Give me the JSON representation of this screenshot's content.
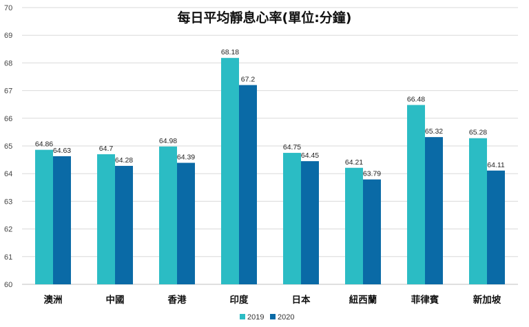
{
  "chart_data": {
    "type": "bar",
    "title": "每日平均靜息心率(單位:分鐘)",
    "xlabel": "",
    "ylabel": "",
    "ylim": [
      60,
      70
    ],
    "yticks": [
      60,
      61,
      62,
      63,
      64,
      65,
      66,
      67,
      68,
      69,
      70
    ],
    "categories": [
      "澳洲",
      "中國",
      "香港",
      "印度",
      "日本",
      "紐西蘭",
      "菲律賓",
      "新加坡"
    ],
    "series": [
      {
        "name": "2019",
        "color": "#2bbcc4",
        "values": [
          64.86,
          64.7,
          64.98,
          68.18,
          64.75,
          64.21,
          66.48,
          65.28
        ]
      },
      {
        "name": "2020",
        "color": "#0a6aa6",
        "values": [
          64.63,
          64.28,
          64.39,
          67.2,
          64.45,
          63.79,
          65.32,
          64.11
        ]
      }
    ],
    "grid": true,
    "legend": "bottom-center"
  }
}
